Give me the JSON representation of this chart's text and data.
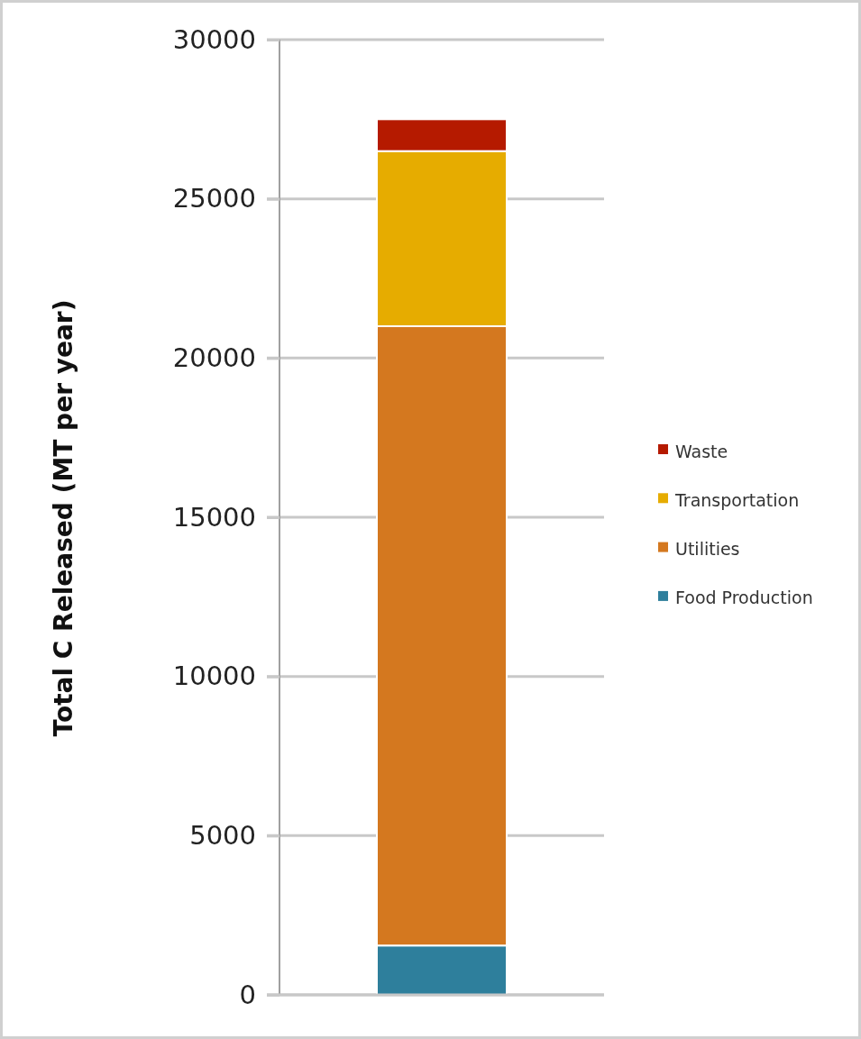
{
  "chart_data": {
    "type": "bar",
    "stacked": true,
    "ylabel": "Total C Released (MT per year)",
    "categories": [
      null
    ],
    "series": [
      {
        "name": "Food Production",
        "color": "#2e7f9c",
        "values": [
          1550
        ]
      },
      {
        "name": "Utilities",
        "color": "#d4781f",
        "values": [
          19450
        ]
      },
      {
        "name": "Transportation",
        "color": "#e6ac00",
        "values": [
          5500
        ]
      },
      {
        "name": "Waste",
        "color": "#b51a00",
        "values": [
          1000
        ]
      }
    ],
    "ylim": [
      0,
      30000
    ],
    "yticks": [
      0,
      5000,
      10000,
      15000,
      20000,
      25000,
      30000
    ],
    "grid": "y",
    "legend": "right"
  }
}
